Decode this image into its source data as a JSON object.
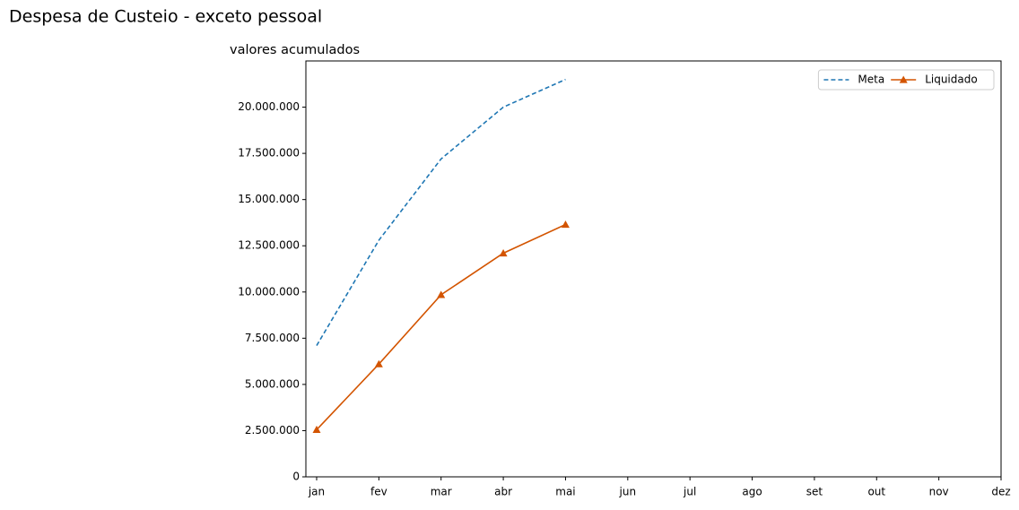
{
  "chart_data": {
    "type": "line",
    "title": "Despesa de Custeio - exceto pessoal",
    "subtitle": "valores acumulados",
    "categories": [
      "jan",
      "fev",
      "mar",
      "abr",
      "mai",
      "jun",
      "jul",
      "ago",
      "set",
      "out",
      "nov",
      "dez"
    ],
    "series": [
      {
        "name": "Meta",
        "color": "#1f77b4",
        "linestyle": "dashed",
        "marker": null,
        "values": [
          7100000,
          12800000,
          17200000,
          20000000,
          21500000,
          null,
          null,
          null,
          null,
          null,
          null,
          null
        ]
      },
      {
        "name": "Liquidado",
        "color": "#d35400",
        "linestyle": "solid",
        "marker": "triangle",
        "values": [
          2550000,
          6100000,
          9850000,
          12100000,
          13650000,
          null,
          null,
          null,
          null,
          null,
          null,
          null
        ]
      }
    ],
    "ylim": [
      0,
      22500000
    ],
    "yticks": [
      0,
      {
        "value": 2500000,
        "label": "2.500.000"
      },
      {
        "value": 5000000,
        "label": "5.000.000"
      },
      {
        "value": 7500000,
        "label": "7.500.000"
      },
      {
        "value": 10000000,
        "label": "10.000.000"
      },
      {
        "value": 12500000,
        "label": "12.500.000"
      },
      {
        "value": 15000000,
        "label": "15.000.000"
      },
      {
        "value": 17500000,
        "label": "17.500.000"
      },
      {
        "value": 20000000,
        "label": "20.000.000"
      }
    ],
    "legend": "upper right",
    "grid": false
  }
}
